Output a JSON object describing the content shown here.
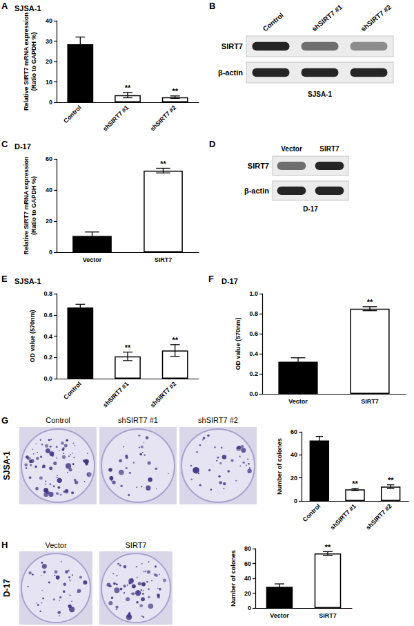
{
  "chart_data": [
    {
      "panel": "A",
      "type": "bar",
      "title": "SJSA-1",
      "ylabel": "Relative SIRT7 mRNA expression\n(Ratio to GAPDH %)",
      "categories": [
        "Control",
        "shSIRT7 #1",
        "shSIRT7 #2"
      ],
      "values": [
        28.5,
        3.5,
        2.5
      ],
      "errors": [
        3.5,
        1.3,
        0.6
      ],
      "annotations": [
        null,
        "**",
        "**"
      ],
      "colors": [
        "#000000",
        "#ffffff",
        "#ffffff"
      ],
      "ylim": [
        0,
        40
      ],
      "yticks": [
        0,
        10,
        20,
        30,
        40
      ],
      "grid": false
    },
    {
      "panel": "C",
      "type": "bar",
      "title": "D-17",
      "ylabel": "Relative SIRT7 mRNA expression\n(Ratio to GAPDH %)",
      "categories": [
        "Vector",
        "SIRT7"
      ],
      "values": [
        10.5,
        52.5
      ],
      "errors": [
        2.5,
        1.5
      ],
      "annotations": [
        null,
        "**"
      ],
      "colors": [
        "#000000",
        "#ffffff"
      ],
      "ylim": [
        0,
        60
      ],
      "yticks": [
        0,
        20,
        40,
        60
      ],
      "grid": false
    },
    {
      "panel": "E",
      "type": "bar",
      "title": "SJSA-1",
      "ylabel": "OD value (570nm)",
      "categories": [
        "Control",
        "shSIRT7 #1",
        "shSIRT7 #2"
      ],
      "values": [
        0.67,
        0.21,
        0.265
      ],
      "errors": [
        0.03,
        0.04,
        0.055
      ],
      "annotations": [
        null,
        "**",
        "**"
      ],
      "colors": [
        "#000000",
        "#ffffff",
        "#ffffff"
      ],
      "ylim": [
        0,
        0.8
      ],
      "yticks": [
        {
          "value": 0,
          "label": "0.0"
        },
        0.2,
        0.4,
        0.6,
        0.8
      ],
      "grid": false
    },
    {
      "panel": "F",
      "type": "bar",
      "title": "D-17",
      "ylabel": "OD value (570nm)",
      "categories": [
        "Vector",
        "SIRT7"
      ],
      "values": [
        0.32,
        0.85
      ],
      "errors": [
        0.04,
        0.02
      ],
      "annotations": [
        null,
        "**"
      ],
      "colors": [
        "#000000",
        "#ffffff"
      ],
      "ylim": [
        0,
        1
      ],
      "yticks": [
        {
          "value": 0,
          "label": "0.0"
        },
        0.2,
        0.4,
        0.6,
        0.8,
        {
          "value": 1,
          "label": "1.0"
        }
      ],
      "grid": false
    },
    {
      "type": "bar",
      "ylabel": "Number of colones",
      "categories": [
        "Control",
        "shSIRT7 #1",
        "shSIRT7 #2"
      ],
      "values": [
        52.5,
        10,
        12.5
      ],
      "errors": [
        3.5,
        1,
        1.5
      ],
      "annotations": [
        null,
        "**",
        "**"
      ],
      "colors": [
        "#000000",
        "#ffffff",
        "#ffffff"
      ],
      "ylim": [
        0,
        60
      ],
      "yticks": [
        0,
        20,
        40,
        60
      ],
      "grid": false
    },
    {
      "type": "bar",
      "ylabel": "Number of colones",
      "categories": [
        "Vector",
        "SIRT7"
      ],
      "values": [
        28.5,
        73.5
      ],
      "errors": [
        4,
        2.5
      ],
      "annotations": [
        null,
        "**"
      ],
      "colors": [
        "#000000",
        "#ffffff"
      ],
      "ylim": [
        0,
        80
      ],
      "yticks": [
        0,
        20,
        40,
        60,
        80
      ],
      "grid": false
    }
  ],
  "blots": [
    {
      "panel": "B",
      "cell_line": "SJSA-1",
      "lanes": [
        "Control",
        "shSIRT7 #1",
        "shSIRT7 #2"
      ],
      "rows": [
        "SIRT7",
        "β-actin"
      ]
    },
    {
      "panel": "D",
      "cell_line": "D-17",
      "lanes": [
        "Vector",
        "SIRT7"
      ],
      "rows": [
        "SIRT7",
        "β-actin"
      ]
    }
  ],
  "colony_images": [
    {
      "panel": "G",
      "cell_line": "SJSA-1",
      "labels": [
        "Control",
        "shSIRT7 #1",
        "shSIRT7 #2"
      ]
    },
    {
      "panel": "H",
      "cell_line": "D-17",
      "labels": [
        "Vector",
        "SIRT7"
      ]
    }
  ]
}
